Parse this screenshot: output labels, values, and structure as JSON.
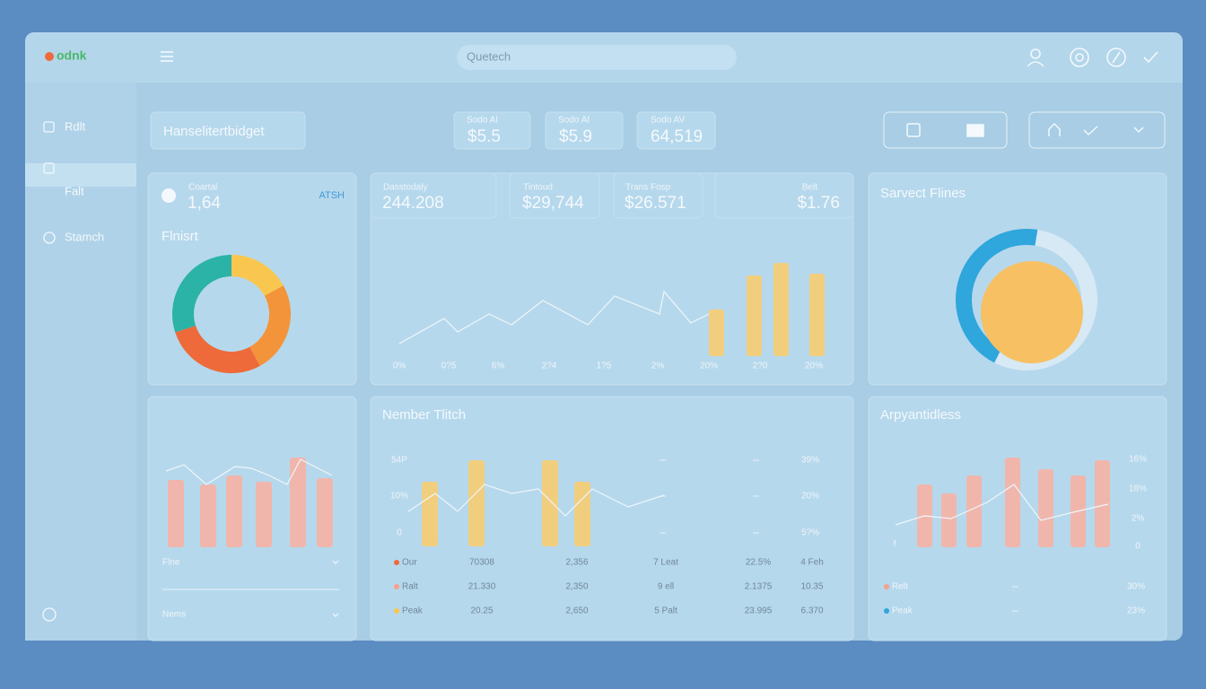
{
  "topbar": {
    "logo": "odnk",
    "search": "Quetech"
  },
  "sidebar": [
    "Rdlt",
    "Falt",
    "Stamch"
  ],
  "header": {
    "title": "Hanselitertbidget",
    "stats": [
      {
        "label": "Sodo AI",
        "value": "$5.5"
      },
      {
        "label": "Sodo AI",
        "value": "$5.9"
      },
      {
        "label": "Sodo AV",
        "value": "64,519"
      }
    ]
  },
  "overview": {
    "label": "Coartal",
    "value": "1,64",
    "tag": "ATSH",
    "title": "Flnisrt",
    "donut": {
      "values": [
        17,
        25,
        28,
        30
      ],
      "colors": [
        "#f9c74f",
        "#f4943a",
        "#ee6a3a",
        "#2ab3a6"
      ]
    }
  },
  "trend": {
    "stats": [
      {
        "label": "Dasstodaly",
        "value": "244.208"
      },
      {
        "label": "Tintoud",
        "value": "$29,744"
      },
      {
        "label": "Trans Fosp",
        "value": "$26.571"
      },
      {
        "label": "Belt",
        "value": "$1.76"
      }
    ],
    "line": [
      14,
      42,
      27,
      47,
      35,
      62,
      35,
      67,
      47,
      72,
      37,
      52
    ],
    "bars": [
      52,
      90,
      104,
      92
    ],
    "bar_color": "#f7cd72",
    "x_labels": [
      "0%",
      "0?5",
      "6%",
      "2?4",
      "1?5",
      "2%",
      "20%",
      "2?0",
      "20%"
    ]
  },
  "service": {
    "title": "Sarvect Flines",
    "ring": {
      "values": [
        45,
        55
      ],
      "colors": [
        "#2fa6dc",
        "#d6e9f4"
      ]
    },
    "center_color": "#f7c063"
  },
  "mini": {
    "bars": [
      75,
      70,
      80,
      73,
      100,
      77
    ],
    "line": [
      85,
      92,
      70,
      90,
      88,
      80,
      70,
      98,
      80
    ],
    "bar_color": "#f6b3a5",
    "rows": [
      "Flne",
      "Nems"
    ]
  },
  "number": {
    "title": "Nember Tlitch",
    "y_labels": [
      "54P",
      "10%",
      "0"
    ],
    "right_labels": [
      "39%",
      "20%",
      "5?%"
    ],
    "bars": [
      72,
      96,
      96,
      72
    ],
    "line": [
      39,
      59,
      39,
      69,
      59,
      64,
      34,
      64,
      44,
      57
    ],
    "bar_color": "#f7cd72",
    "rows": [
      [
        "Our",
        "70308",
        "2,356",
        "7 Leat",
        "22.5%",
        "4 Feh"
      ],
      [
        "Ralt",
        "21.330",
        "2,350",
        "9 ell",
        "2.1375",
        "10.35"
      ],
      [
        "Peak",
        "20.25",
        "2,650",
        "5 Palt",
        "23.995",
        "6.370"
      ]
    ],
    "row_colors": [
      "#ee6a3a",
      "#f6a08e",
      "#f9c74f"
    ]
  },
  "arp": {
    "title": "Arpyantidless",
    "y_labels": [
      "16%",
      "18%",
      "2%",
      "0"
    ],
    "left_label": "f",
    "bars": [
      70,
      60,
      80,
      100,
      87,
      80,
      97
    ],
    "line": [
      25,
      35,
      32,
      50,
      70,
      30,
      40,
      48
    ],
    "bar_color": "#f6b3a5",
    "legend": [
      {
        "name": "Relt",
        "value": "30%",
        "color": "#f6a08e"
      },
      {
        "name": "Peak",
        "value": "23%",
        "color": "#2fa6dc"
      }
    ]
  }
}
